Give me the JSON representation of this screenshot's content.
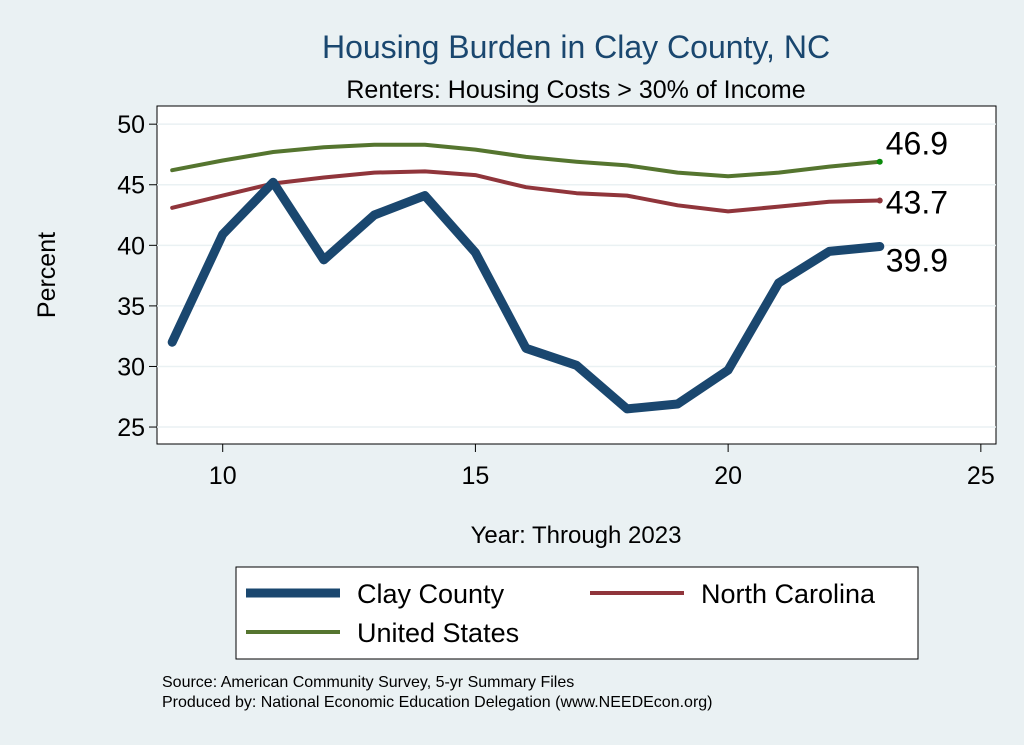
{
  "chart_data": {
    "type": "line",
    "title": "Housing Burden in Clay County, NC",
    "subtitle": "Renters: Housing Costs > 30% of Income",
    "xlabel": "Year: Through 2023",
    "ylabel": "Percent",
    "xlim": [
      8.7,
      25.3
    ],
    "ylim": [
      23.6,
      51.5
    ],
    "xticks": [
      10,
      15,
      20,
      25
    ],
    "yticks": [
      25,
      30,
      35,
      40,
      45,
      50
    ],
    "grid": true,
    "legend_position": "bottom",
    "x": [
      9,
      10,
      11,
      12,
      13,
      14,
      15,
      16,
      17,
      18,
      19,
      20,
      21,
      22,
      23
    ],
    "series": [
      {
        "name": "Clay County",
        "color": "#1a476f",
        "values": [
          32.0,
          40.9,
          45.2,
          38.8,
          42.5,
          44.1,
          39.4,
          31.5,
          30.1,
          26.5,
          26.9,
          29.7,
          36.9,
          39.5,
          39.9
        ],
        "end_label": "39.9"
      },
      {
        "name": "North Carolina",
        "color": "#90353b",
        "values": [
          43.1,
          44.1,
          45.1,
          45.6,
          46.0,
          46.1,
          45.8,
          44.8,
          44.3,
          44.1,
          43.3,
          42.8,
          43.2,
          43.6,
          43.7
        ],
        "end_label": "43.7"
      },
      {
        "name": "United States",
        "color": "#55752f",
        "values": [
          46.2,
          47.0,
          47.7,
          48.1,
          48.3,
          48.3,
          47.9,
          47.3,
          46.9,
          46.6,
          46.0,
          45.7,
          46.0,
          46.5,
          46.9
        ],
        "end_label": "46.9"
      }
    ]
  },
  "source_lines": [
    "Source: American Community Survey, 5-yr Summary Files",
    "Produced by: National Economic Education Delegation (www.NEEDEcon.org)"
  ]
}
